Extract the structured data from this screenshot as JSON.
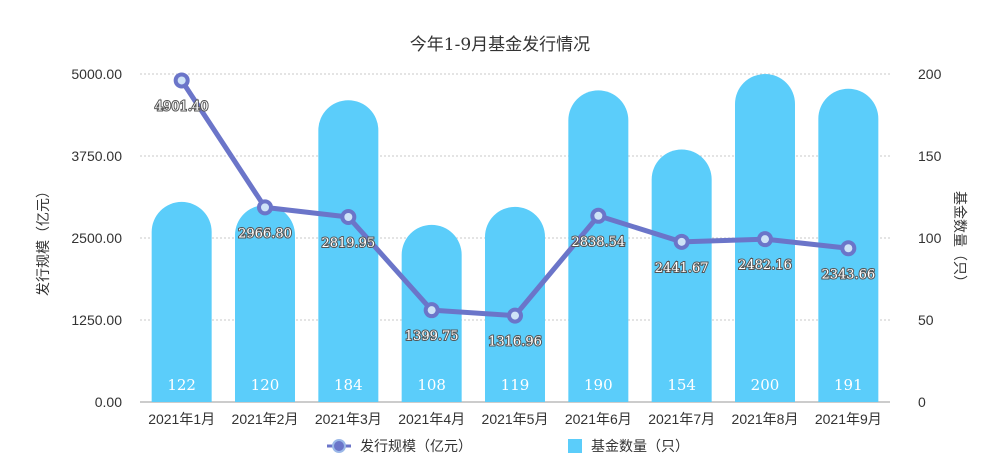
{
  "chart_data": {
    "type": "bar+line",
    "title": "今年1-9月基金发行情况",
    "categories": [
      "2021年1月",
      "2021年2月",
      "2021年3月",
      "2021年4月",
      "2021年5月",
      "2021年6月",
      "2021年7月",
      "2021年8月",
      "2021年9月"
    ],
    "y_left": {
      "label": "发行规模（亿元）",
      "range": [
        0,
        5000
      ],
      "ticks": [
        "0.00",
        "1250.00",
        "2500.00",
        "3750.00",
        "5000.00"
      ]
    },
    "y_right": {
      "label": "基金数量（只）",
      "range": [
        0,
        200
      ],
      "ticks": [
        "0",
        "50",
        "100",
        "150",
        "200"
      ]
    },
    "series": [
      {
        "name": "发行规模（亿元）",
        "type": "line",
        "axis": "left",
        "color": "#6b75c9",
        "values": [
          4901.4,
          2966.8,
          2819.95,
          1399.75,
          1316.96,
          2838.54,
          2441.67,
          2482.16,
          2343.66
        ],
        "labels": [
          "4901.40",
          "2966.80",
          "2819.95",
          "1399.75",
          "1316.96",
          "2838.54",
          "2441.67",
          "2482.16",
          "2343.66"
        ]
      },
      {
        "name": "基金数量（只）",
        "type": "bar",
        "axis": "right",
        "color": "#5bcdfa",
        "values": [
          122,
          120,
          184,
          108,
          119,
          190,
          154,
          200,
          191
        ],
        "labels": [
          "122",
          "120",
          "184",
          "108",
          "119",
          "190",
          "154",
          "200",
          "191"
        ]
      }
    ],
    "grid": true,
    "legend_position": "bottom"
  }
}
